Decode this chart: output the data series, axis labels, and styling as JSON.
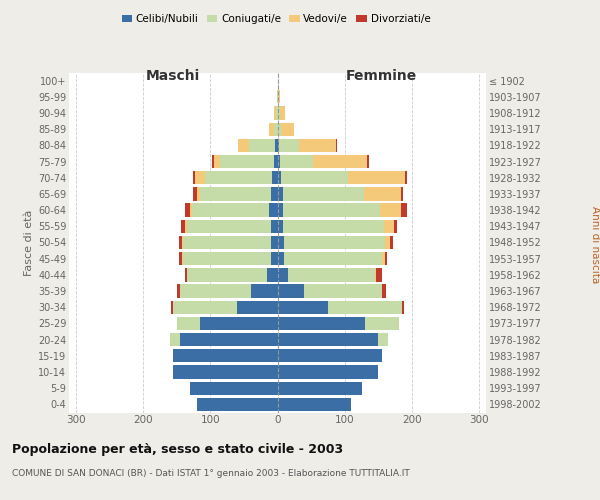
{
  "age_groups": [
    "0-4",
    "5-9",
    "10-14",
    "15-19",
    "20-24",
    "25-29",
    "30-34",
    "35-39",
    "40-44",
    "45-49",
    "50-54",
    "55-59",
    "60-64",
    "65-69",
    "70-74",
    "75-79",
    "80-84",
    "85-89",
    "90-94",
    "95-99",
    "100+"
  ],
  "birth_years": [
    "1998-2002",
    "1993-1997",
    "1988-1992",
    "1983-1987",
    "1978-1982",
    "1973-1977",
    "1968-1972",
    "1963-1967",
    "1958-1962",
    "1953-1957",
    "1948-1952",
    "1943-1947",
    "1938-1942",
    "1933-1937",
    "1928-1932",
    "1923-1927",
    "1918-1922",
    "1913-1917",
    "1908-1912",
    "1903-1907",
    "≤ 1902"
  ],
  "male": {
    "celibi": [
      120,
      130,
      155,
      155,
      145,
      115,
      60,
      40,
      15,
      10,
      10,
      10,
      12,
      10,
      8,
      5,
      3,
      0,
      0,
      0,
      0
    ],
    "coniugati": [
      0,
      0,
      0,
      0,
      15,
      35,
      95,
      105,
      120,
      130,
      130,
      125,
      115,
      105,
      100,
      80,
      40,
      5,
      2,
      1,
      0
    ],
    "vedovi": [
      0,
      0,
      0,
      0,
      0,
      0,
      0,
      0,
      0,
      2,
      2,
      3,
      3,
      5,
      15,
      10,
      15,
      8,
      3,
      0,
      0
    ],
    "divorziati": [
      0,
      0,
      0,
      0,
      0,
      0,
      3,
      5,
      3,
      4,
      4,
      5,
      8,
      5,
      2,
      2,
      0,
      0,
      0,
      0,
      0
    ]
  },
  "female": {
    "nubili": [
      110,
      125,
      150,
      155,
      150,
      130,
      75,
      40,
      15,
      10,
      10,
      8,
      8,
      8,
      5,
      3,
      2,
      0,
      0,
      0,
      0
    ],
    "coniugate": [
      0,
      0,
      0,
      0,
      15,
      50,
      110,
      115,
      130,
      145,
      150,
      150,
      145,
      120,
      100,
      50,
      30,
      5,
      3,
      1,
      0
    ],
    "vedove": [
      0,
      0,
      0,
      0,
      0,
      0,
      0,
      1,
      2,
      5,
      8,
      15,
      30,
      55,
      85,
      80,
      55,
      20,
      8,
      2,
      0
    ],
    "divorziate": [
      0,
      0,
      0,
      0,
      0,
      0,
      3,
      5,
      8,
      3,
      4,
      5,
      10,
      3,
      3,
      3,
      2,
      0,
      0,
      0,
      0
    ]
  },
  "colors": {
    "celibi": "#3a6ea5",
    "coniugati": "#c5dba8",
    "vedovi": "#f5c97a",
    "divorziati": "#c0392b"
  },
  "title": "Popolazione per età, sesso e stato civile - 2003",
  "subtitle": "COMUNE DI SAN DONACI (BR) - Dati ISTAT 1° gennaio 2003 - Elaborazione TUTTITALIA.IT",
  "xlabel_left": "Maschi",
  "xlabel_right": "Femmine",
  "ylabel_left": "Fasce di età",
  "ylabel_right": "Anni di nascita",
  "xlim": 310,
  "background_color": "#eeede8",
  "plot_bg_color": "#ffffff"
}
